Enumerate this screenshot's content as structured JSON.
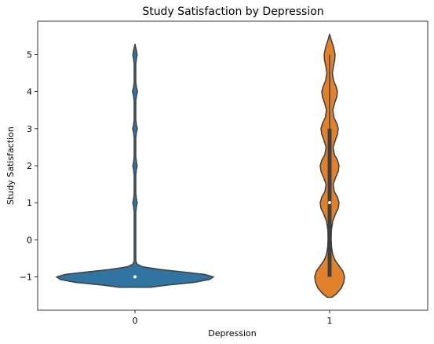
{
  "chart_data": {
    "type": "violin",
    "title": "Study Satisfaction by Depression",
    "xlabel": "Depression",
    "ylabel": "Study Satisfaction",
    "categories": [
      "0",
      "1"
    ],
    "ylim": [
      -1.9,
      5.9
    ],
    "yticks": [
      "−1",
      "0",
      "1",
      "2",
      "3",
      "4",
      "5"
    ],
    "yticks_values": [
      -1,
      0,
      1,
      2,
      3,
      4,
      5
    ],
    "grid": false,
    "legend": "none",
    "series": [
      {
        "category": "0",
        "color": "#3274a1",
        "median": -1,
        "q1": -1,
        "q3": -1,
        "whisker_low": -1,
        "whisker_high": -1,
        "range": [
          -1.28,
          5.28
        ],
        "density": [
          [
            -1.28,
            0.2
          ],
          [
            -1.22,
            0.42
          ],
          [
            -1.15,
            0.75
          ],
          [
            -1.07,
            0.95
          ],
          [
            -1.0,
            1.0
          ],
          [
            -0.93,
            0.88
          ],
          [
            -0.87,
            0.62
          ],
          [
            -0.8,
            0.32
          ],
          [
            -0.73,
            0.1
          ],
          [
            -0.66,
            0.03
          ],
          [
            -0.58,
            0.01
          ],
          [
            0.0,
            0.01
          ],
          [
            0.75,
            0.01
          ],
          [
            0.9,
            0.018
          ],
          [
            1.0,
            0.028
          ],
          [
            1.1,
            0.018
          ],
          [
            1.25,
            0.01
          ],
          [
            1.75,
            0.01
          ],
          [
            1.9,
            0.018
          ],
          [
            2.0,
            0.028
          ],
          [
            2.1,
            0.018
          ],
          [
            2.25,
            0.01
          ],
          [
            2.75,
            0.01
          ],
          [
            2.9,
            0.018
          ],
          [
            3.0,
            0.03
          ],
          [
            3.1,
            0.018
          ],
          [
            3.25,
            0.01
          ],
          [
            3.75,
            0.01
          ],
          [
            3.9,
            0.02
          ],
          [
            4.0,
            0.032
          ],
          [
            4.1,
            0.02
          ],
          [
            4.25,
            0.01
          ],
          [
            4.75,
            0.01
          ],
          [
            4.9,
            0.02
          ],
          [
            5.0,
            0.028
          ],
          [
            5.15,
            0.014
          ],
          [
            5.28,
            0.0
          ]
        ]
      },
      {
        "category": "1",
        "color": "#e1812c",
        "median": 1,
        "q1": -1,
        "q3": 3,
        "whisker_low": -1,
        "whisker_high": 5,
        "range": [
          -1.55,
          5.55
        ],
        "density": [
          [
            -1.55,
            0.03
          ],
          [
            -1.45,
            0.09
          ],
          [
            -1.3,
            0.15
          ],
          [
            -1.15,
            0.18
          ],
          [
            -1.0,
            0.19
          ],
          [
            -0.85,
            0.17
          ],
          [
            -0.7,
            0.12
          ],
          [
            -0.55,
            0.07
          ],
          [
            -0.4,
            0.04
          ],
          [
            -0.2,
            0.025
          ],
          [
            0.0,
            0.02
          ],
          [
            0.25,
            0.022
          ],
          [
            0.5,
            0.04
          ],
          [
            0.7,
            0.075
          ],
          [
            0.85,
            0.11
          ],
          [
            1.0,
            0.12
          ],
          [
            1.15,
            0.1
          ],
          [
            1.3,
            0.06
          ],
          [
            1.5,
            0.045
          ],
          [
            1.7,
            0.08
          ],
          [
            1.85,
            0.11
          ],
          [
            2.0,
            0.12
          ],
          [
            2.15,
            0.1
          ],
          [
            2.3,
            0.06
          ],
          [
            2.5,
            0.045
          ],
          [
            2.7,
            0.075
          ],
          [
            2.85,
            0.1
          ],
          [
            3.0,
            0.11
          ],
          [
            3.15,
            0.09
          ],
          [
            3.3,
            0.055
          ],
          [
            3.5,
            0.04
          ],
          [
            3.7,
            0.065
          ],
          [
            3.85,
            0.09
          ],
          [
            4.0,
            0.1
          ],
          [
            4.15,
            0.08
          ],
          [
            4.3,
            0.05
          ],
          [
            4.5,
            0.035
          ],
          [
            4.7,
            0.05
          ],
          [
            4.85,
            0.065
          ],
          [
            5.0,
            0.07
          ],
          [
            5.2,
            0.05
          ],
          [
            5.4,
            0.02
          ],
          [
            5.55,
            0.0
          ]
        ]
      }
    ]
  }
}
